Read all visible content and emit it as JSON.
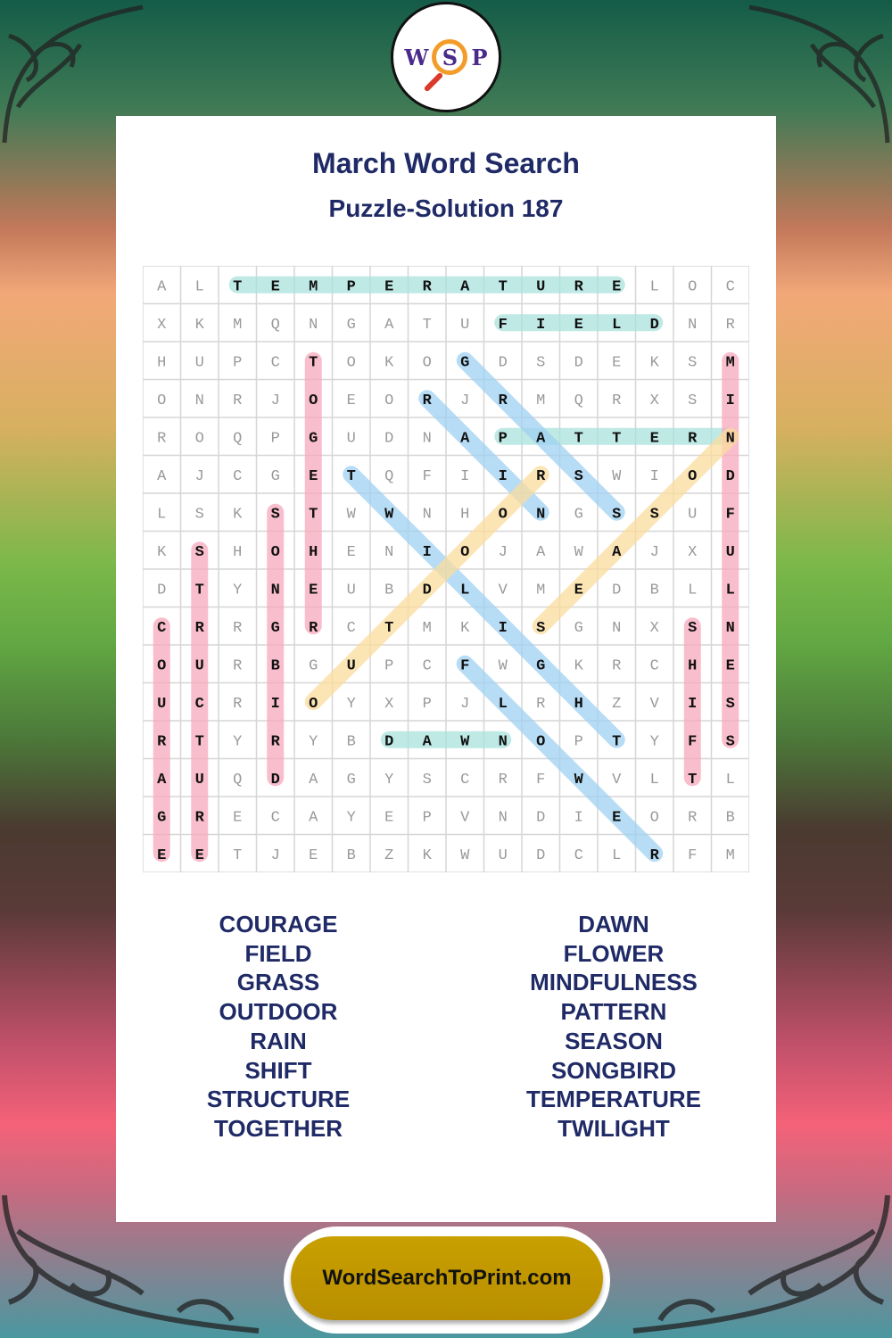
{
  "logo": {
    "letters": [
      "W",
      "S",
      "P"
    ]
  },
  "title": "March Word Search",
  "subtitle": "Puzzle-Solution 187",
  "grid": [
    "ALTEMPERATURELOC",
    "XKMQNGATUFIELDNR",
    "HUPCTOKOGDSDEKSM",
    "ONRJOEORJRMQRXSI",
    "ROQPGUDNAPATTERN",
    "AJCGETQFIIRSWIOD",
    "LSKSTWWNHONGSSUF",
    "KSHOHENIOJAWAJXU",
    "DTYNEUBDLVMEDBLL",
    "CRRGRCTMKISGNXSN",
    "OURBGUPCFWGKRCHE",
    "UCRIOYXPJLRHZVIS",
    "RTYRYBDAWNOPTYFS",
    "AUQDAGYSCRFWVLTL",
    "GRECAYEPVNDIEORB",
    "EETJEBZKWUDCLRFM"
  ],
  "colors": {
    "teal": "#a8e2dc",
    "pink": "#f7a8bc",
    "blue": "#9fd0f2",
    "yellow": "#fbdc9c",
    "text": "#1f2a66"
  },
  "solutions": [
    {
      "word": "TEMPERATURE",
      "start": [
        0,
        2
      ],
      "end": [
        0,
        12
      ],
      "color": "teal"
    },
    {
      "word": "FIELD",
      "start": [
        1,
        9
      ],
      "end": [
        1,
        13
      ],
      "color": "teal"
    },
    {
      "word": "PATTERN",
      "start": [
        4,
        9
      ],
      "end": [
        4,
        15
      ],
      "color": "teal"
    },
    {
      "word": "DAWN",
      "start": [
        12,
        6
      ],
      "end": [
        12,
        9
      ],
      "color": "teal"
    },
    {
      "word": "TOGETHER",
      "start": [
        2,
        4
      ],
      "end": [
        9,
        4
      ],
      "color": "pink"
    },
    {
      "word": "MINDFULNESS",
      "start": [
        2,
        15
      ],
      "end": [
        12,
        15
      ],
      "color": "pink"
    },
    {
      "word": "SONGBIRD",
      "start": [
        6,
        3
      ],
      "end": [
        13,
        3
      ],
      "color": "pink"
    },
    {
      "word": "STRUCTURE",
      "start": [
        7,
        1
      ],
      "end": [
        15,
        1
      ],
      "color": "pink"
    },
    {
      "word": "COURAGE",
      "start": [
        9,
        0
      ],
      "end": [
        15,
        0
      ],
      "color": "pink"
    },
    {
      "word": "SHIFT",
      "start": [
        9,
        14
      ],
      "end": [
        13,
        14
      ],
      "color": "pink"
    },
    {
      "word": "GRASS",
      "start": [
        2,
        8
      ],
      "end": [
        6,
        12
      ],
      "color": "blue"
    },
    {
      "word": "RAIN",
      "start": [
        3,
        7
      ],
      "end": [
        6,
        10
      ],
      "color": "blue"
    },
    {
      "word": "TWILIGHT",
      "start": [
        5,
        5
      ],
      "end": [
        12,
        12
      ],
      "color": "blue"
    },
    {
      "word": "FLOWER",
      "start": [
        10,
        8
      ],
      "end": [
        15,
        13
      ],
      "color": "blue"
    },
    {
      "word": "OUTDOOR",
      "start": [
        11,
        4
      ],
      "end": [
        5,
        10
      ],
      "color": "yellow"
    },
    {
      "word": "SEASON",
      "start": [
        9,
        10
      ],
      "end": [
        4,
        15
      ],
      "color": "yellow"
    }
  ],
  "word_list": {
    "left": [
      "COURAGE",
      "FIELD",
      "GRASS",
      "OUTDOOR",
      "RAIN",
      "SHIFT",
      "STRUCTURE",
      "TOGETHER"
    ],
    "right": [
      "DAWN",
      "FLOWER",
      "MINDFULNESS",
      "PATTERN",
      "SEASON",
      "SONGBIRD",
      "TEMPERATURE",
      "TWILIGHT"
    ]
  },
  "footer": "WordSearchToPrint.com"
}
